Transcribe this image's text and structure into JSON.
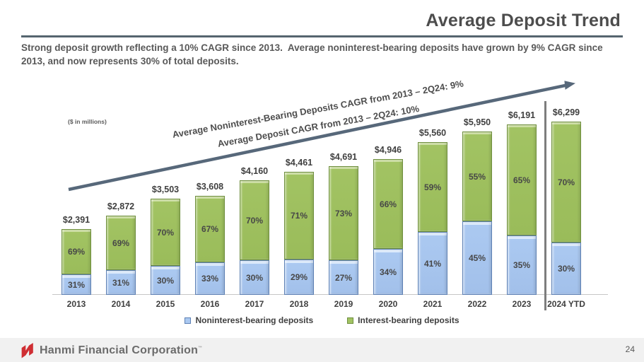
{
  "slide": {
    "title": "Average Deposit Trend",
    "subtitle": "Strong deposit growth reflecting a 10% CAGR since 2013.  Average noninterest-bearing deposits have grown by 9% CAGR since 2013, and now represents 30% of total deposits.",
    "units_note": "($ in millions)",
    "page_number": "24",
    "footer_brand": "Hanmi Financial Corporation",
    "footer_trademark": "™"
  },
  "annotations": {
    "arrow_label_top": "Average Noninterest-Bearing Deposits CAGR from 2013 – 2Q24: 9%",
    "arrow_label_bottom": "Average Deposit CAGR from 2013 – 2Q24: 10%"
  },
  "legend": [
    {
      "label": "Noninterest-bearing deposits",
      "color": "#abc9f1"
    },
    {
      "label": "Interest-bearing deposits",
      "color": "#a2c363"
    }
  ],
  "colors": {
    "noninterest_fill": "#abc9f1",
    "noninterest_border": "#5d80b4",
    "interest_fill": "#a2c363",
    "interest_border": "#6f8f3e",
    "arrow": "#57687a",
    "text": "#4d4d4d",
    "footer_bg": "#f1f1f1",
    "logo_red": "#cf2e33"
  },
  "chart_data": {
    "type": "bar",
    "stacked": true,
    "title": "Average Deposit Trend",
    "units": "$ in millions",
    "categories": [
      "2013",
      "2014",
      "2015",
      "2016",
      "2017",
      "2018",
      "2019",
      "2020",
      "2021",
      "2022",
      "2023",
      "2024 YTD"
    ],
    "totals": [
      2391,
      2872,
      3503,
      3608,
      4160,
      4461,
      4691,
      4946,
      5560,
      5950,
      6191,
      6299
    ],
    "totals_display": [
      "$2,391",
      "$2,872",
      "$3,503",
      "$3,608",
      "$4,160",
      "$4,461",
      "$4,691",
      "$4,946",
      "$5,560",
      "$5,950",
      "$6,191",
      "$6,299"
    ],
    "series": [
      {
        "name": "Noninterest-bearing deposits",
        "percent_of_total": [
          31,
          31,
          30,
          33,
          30,
          29,
          27,
          34,
          41,
          45,
          35,
          30
        ],
        "percent_display": [
          "31%",
          "31%",
          "30%",
          "33%",
          "30%",
          "29%",
          "27%",
          "34%",
          "41%",
          "45%",
          "35%",
          "30%"
        ]
      },
      {
        "name": "Interest-bearing deposits",
        "percent_of_total": [
          69,
          69,
          70,
          67,
          70,
          71,
          73,
          66,
          59,
          55,
          65,
          70
        ],
        "percent_display": [
          "69%",
          "69%",
          "70%",
          "67%",
          "70%",
          "71%",
          "73%",
          "66%",
          "59%",
          "55%",
          "65%",
          "70%"
        ]
      }
    ],
    "ylim": [
      0,
      6500
    ],
    "grid": false,
    "legend_position": "bottom",
    "separator_before_category": "2024 YTD"
  }
}
